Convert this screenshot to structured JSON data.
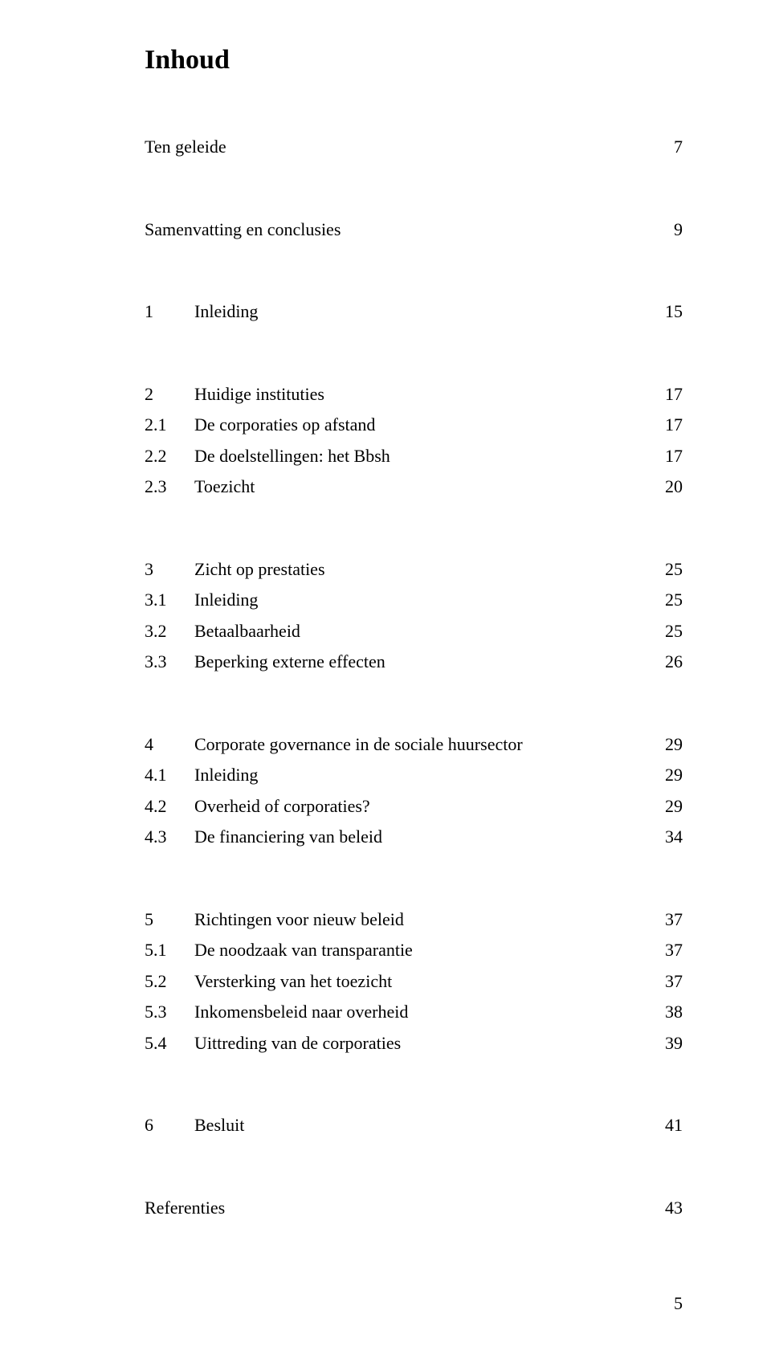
{
  "title": "Inhoud",
  "page_number": "5",
  "groups": [
    [
      {
        "num": "",
        "label": "Ten geleide",
        "page": "7"
      }
    ],
    [
      {
        "num": "",
        "label": "Samenvatting en conclusies",
        "page": "9"
      }
    ],
    [
      {
        "num": "1",
        "label": "Inleiding",
        "page": "15"
      }
    ],
    [
      {
        "num": "2",
        "label": "Huidige instituties",
        "page": "17"
      },
      {
        "num": "2.1",
        "label": "De corporaties op afstand",
        "page": "17"
      },
      {
        "num": "2.2",
        "label": "De doelstellingen: het Bbsh",
        "page": "17"
      },
      {
        "num": "2.3",
        "label": "Toezicht",
        "page": "20"
      }
    ],
    [
      {
        "num": "3",
        "label": "Zicht op prestaties",
        "page": "25"
      },
      {
        "num": "3.1",
        "label": "Inleiding",
        "page": "25"
      },
      {
        "num": "3.2",
        "label": "Betaalbaarheid",
        "page": "25"
      },
      {
        "num": "3.3",
        "label": "Beperking externe effecten",
        "page": "26"
      }
    ],
    [
      {
        "num": "4",
        "label": "Corporate governance in de sociale huursector",
        "page": "29"
      },
      {
        "num": "4.1",
        "label": "Inleiding",
        "page": "29"
      },
      {
        "num": "4.2",
        "label": "Overheid of corporaties?",
        "page": "29"
      },
      {
        "num": "4.3",
        "label": "De financiering van beleid",
        "page": "34"
      }
    ],
    [
      {
        "num": "5",
        "label": "Richtingen voor nieuw beleid",
        "page": "37"
      },
      {
        "num": "5.1",
        "label": "De noodzaak van transparantie",
        "page": "37"
      },
      {
        "num": "5.2",
        "label": "Versterking van het toezicht",
        "page": "37"
      },
      {
        "num": "5.3",
        "label": "Inkomensbeleid naar overheid",
        "page": "38"
      },
      {
        "num": "5.4",
        "label": "Uittreding van de corporaties",
        "page": "39"
      }
    ],
    [
      {
        "num": "6",
        "label": "Besluit",
        "page": "41"
      }
    ],
    [
      {
        "num": "",
        "label": "Referenties",
        "page": "43"
      }
    ]
  ]
}
